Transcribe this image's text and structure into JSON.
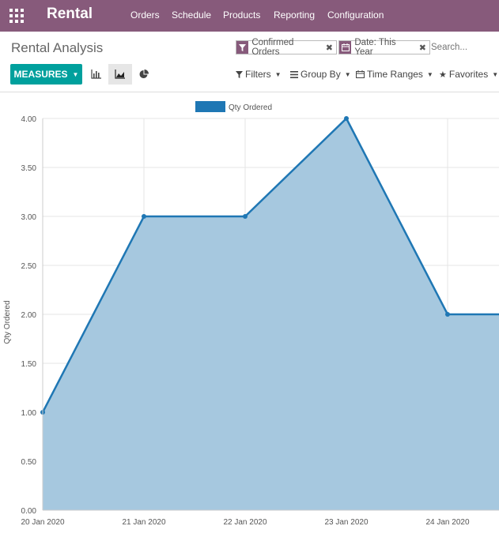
{
  "navbar": {
    "app_title": "Rental",
    "menu": [
      "Orders",
      "Schedule",
      "Products",
      "Reporting",
      "Configuration"
    ]
  },
  "control_panel": {
    "title": "Rental Analysis",
    "facets": [
      "Confirmed Orders",
      "Date: This Year"
    ],
    "search_placeholder": "Search...",
    "measures_label": "MEASURES",
    "dropdowns": [
      "Filters",
      "Group By",
      "Time Ranges",
      "Favorites"
    ]
  },
  "colors": {
    "brand": "#875a7b",
    "primary": "#00a09d",
    "series": "#1f77b4",
    "fill": "#a6c8df"
  },
  "chart_data": {
    "type": "area",
    "x": [
      "20 Jan 2020",
      "21 Jan 2020",
      "22 Jan 2020",
      "23 Jan 2020",
      "24 Jan 2020"
    ],
    "series": [
      {
        "name": "Qty Ordered",
        "values": [
          1.0,
          3.0,
          3.0,
          4.0,
          2.0
        ]
      }
    ],
    "ylabel": "Qty Ordered",
    "yticks": [
      "0.00",
      "0.50",
      "1.00",
      "1.50",
      "2.00",
      "2.50",
      "3.00",
      "3.50",
      "4.00"
    ],
    "ylim": [
      0,
      4
    ],
    "legend": "top-center",
    "grid": true
  }
}
